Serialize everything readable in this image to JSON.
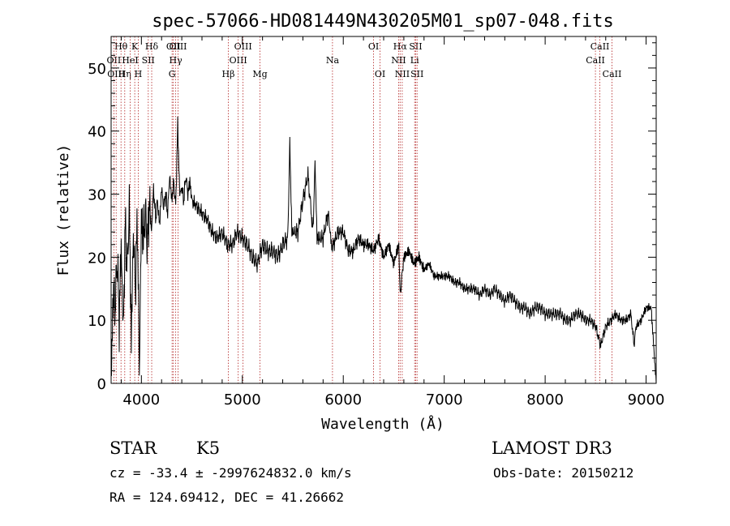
{
  "chart_data": {
    "type": "line",
    "title": "spec-57066-HD081449N430205M01_sp07-048.fits",
    "xlabel": "Wavelength (Å)",
    "ylabel": "Flux (relative)",
    "xlim": [
      3700,
      9100
    ],
    "ylim": [
      0,
      55
    ],
    "xticks": [
      4000,
      5000,
      6000,
      7000,
      8000,
      9000
    ],
    "yticks": [
      0,
      10,
      20,
      30,
      40,
      50
    ],
    "series": [
      {
        "name": "spectrum",
        "x": [
          3700,
          3720,
          3740,
          3760,
          3780,
          3800,
          3820,
          3840,
          3860,
          3880,
          3900,
          3920,
          3940,
          3960,
          3980,
          4000,
          4020,
          4040,
          4060,
          4080,
          4100,
          4120,
          4140,
          4160,
          4180,
          4200,
          4220,
          4240,
          4260,
          4280,
          4300,
          4320,
          4340,
          4360,
          4380,
          4400,
          4420,
          4440,
          4460,
          4480,
          4500,
          4550,
          4600,
          4650,
          4700,
          4750,
          4800,
          4850,
          4900,
          4950,
          5000,
          5050,
          5100,
          5150,
          5200,
          5250,
          5300,
          5350,
          5400,
          5450,
          5470,
          5490,
          5550,
          5600,
          5650,
          5700,
          5720,
          5740,
          5800,
          5850,
          5890,
          5900,
          5950,
          6000,
          6050,
          6100,
          6150,
          6200,
          6250,
          6300,
          6350,
          6400,
          6450,
          6500,
          6550,
          6563,
          6600,
          6650,
          6700,
          6750,
          6800,
          6850,
          6900,
          6950,
          7000,
          7050,
          7100,
          7150,
          7200,
          7250,
          7300,
          7350,
          7400,
          7450,
          7500,
          7550,
          7600,
          7650,
          7700,
          7750,
          7800,
          7850,
          7900,
          7950,
          8000,
          8050,
          8100,
          8150,
          8200,
          8250,
          8300,
          8350,
          8400,
          8450,
          8500,
          8550,
          8600,
          8650,
          8700,
          8750,
          8800,
          8850,
          8880,
          8900,
          8950,
          9000,
          9050,
          9100
        ],
        "y": [
          0,
          14,
          12,
          20,
          10,
          22,
          8,
          25,
          18,
          28,
          7,
          24,
          15,
          26,
          2,
          26,
          23,
          27,
          22,
          29,
          24,
          31,
          26,
          29,
          25,
          31,
          28,
          30,
          27,
          33,
          29,
          32,
          28,
          41,
          30,
          31,
          29,
          33,
          30,
          32,
          29,
          28,
          27,
          26,
          24,
          23,
          24,
          22,
          22,
          24,
          23,
          22,
          20,
          19,
          22,
          21,
          21,
          20,
          22,
          23,
          38,
          24,
          24,
          29,
          33,
          24,
          35,
          23,
          23,
          27,
          21,
          22,
          24,
          24,
          21,
          21,
          23,
          22,
          22,
          21,
          23,
          20,
          22,
          19,
          22,
          14,
          20,
          21,
          19,
          20,
          18,
          19,
          17,
          17,
          17,
          17,
          16,
          16,
          15,
          15,
          15,
          14,
          15,
          14,
          15,
          14,
          13,
          14,
          13,
          12,
          12,
          11,
          12,
          12,
          11,
          11,
          11,
          11,
          10,
          10,
          11,
          11,
          10,
          10,
          9,
          6,
          9,
          10,
          11,
          10,
          10,
          11,
          6,
          9,
          10,
          12,
          12,
          0
        ]
      }
    ],
    "lines": [
      {
        "label": "Hθ",
        "x": 3798,
        "row": 1
      },
      {
        "label": "OII",
        "x": 3727,
        "row": 2
      },
      {
        "label": "OIII",
        "x": 3750,
        "row": 3
      },
      {
        "label": "Hη",
        "x": 3835,
        "row": 3
      },
      {
        "label": "HeI",
        "x": 3889,
        "row": 2
      },
      {
        "label": "K",
        "x": 3934,
        "row": 1
      },
      {
        "label": "SII",
        "x": 4068,
        "row": 2
      },
      {
        "label": "H",
        "x": 3969,
        "row": 3
      },
      {
        "label": "Hδ",
        "x": 4102,
        "row": 1
      },
      {
        "label": "OII",
        "x": 4317,
        "row": 1
      },
      {
        "label": "Hγ",
        "x": 4340,
        "row": 2
      },
      {
        "label": "G",
        "x": 4304,
        "row": 3
      },
      {
        "label": "OIII",
        "x": 4363,
        "row": 1
      },
      {
        "label": "Hβ",
        "x": 4861,
        "row": 3
      },
      {
        "label": "OIII",
        "x": 4959,
        "row": 2
      },
      {
        "label": "OIII",
        "x": 5007,
        "row": 1
      },
      {
        "label": "Mg",
        "x": 5175,
        "row": 3
      },
      {
        "label": "Na",
        "x": 5893,
        "row": 2
      },
      {
        "label": "OI",
        "x": 6300,
        "row": 1
      },
      {
        "label": "OI",
        "x": 6364,
        "row": 3
      },
      {
        "label": "Hα",
        "x": 6563,
        "row": 1
      },
      {
        "label": "NII",
        "x": 6548,
        "row": 2
      },
      {
        "label": "NII",
        "x": 6584,
        "row": 3
      },
      {
        "label": "SII",
        "x": 6717,
        "row": 1
      },
      {
        "label": "Li",
        "x": 6707,
        "row": 2
      },
      {
        "label": "SII",
        "x": 6731,
        "row": 3
      },
      {
        "label": "CaII",
        "x": 8542,
        "row": 1
      },
      {
        "label": "CaII",
        "x": 8498,
        "row": 2
      },
      {
        "label": "CaII",
        "x": 8662,
        "row": 3
      }
    ]
  },
  "info": {
    "class_label": "STAR",
    "subclass": "K5",
    "survey": "LAMOST DR3",
    "cz": "cz = -33.4 ± -2997624832.0 km/s",
    "obs_date": "Obs-Date: 20150212",
    "coords": "RA = 124.69412, DEC =  41.26662"
  }
}
